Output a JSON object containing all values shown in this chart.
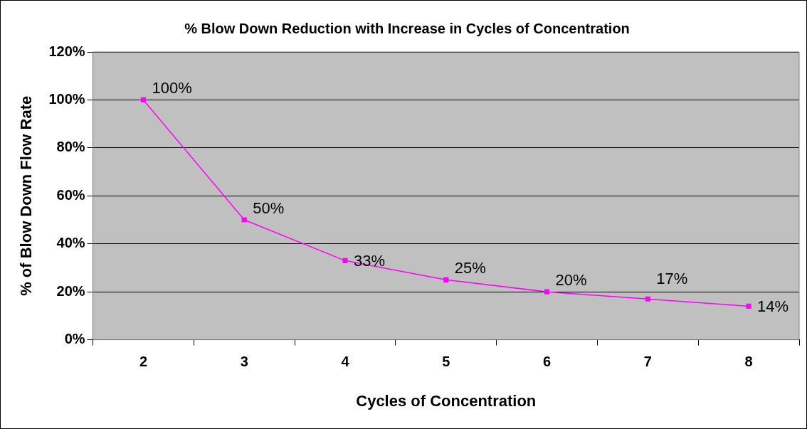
{
  "chart_data": {
    "type": "line",
    "title": "% Blow Down Reduction with Increase in Cycles of Concentration",
    "xlabel": "Cycles of Concentration",
    "ylabel": "% of Blow Down Flow Rate",
    "categories": [
      "2",
      "3",
      "4",
      "5",
      "6",
      "7",
      "8"
    ],
    "values": [
      100,
      50,
      33,
      25,
      20,
      17,
      14
    ],
    "value_labels": [
      "100%",
      "50%",
      "33%",
      "25%",
      "20%",
      "17%",
      "14%"
    ],
    "color": "#ff00ff",
    "marker": "square",
    "line_style": "solid",
    "ylim": [
      0,
      120
    ],
    "yticks": [
      {
        "value": 0,
        "label": "0%"
      },
      {
        "value": 20,
        "label": "20%"
      },
      {
        "value": 40,
        "label": "40%"
      },
      {
        "value": 60,
        "label": "60%"
      },
      {
        "value": 80,
        "label": "80%"
      },
      {
        "value": 100,
        "label": "100%"
      },
      {
        "value": 120,
        "label": "120%"
      }
    ],
    "grid": "y",
    "legend": false
  }
}
